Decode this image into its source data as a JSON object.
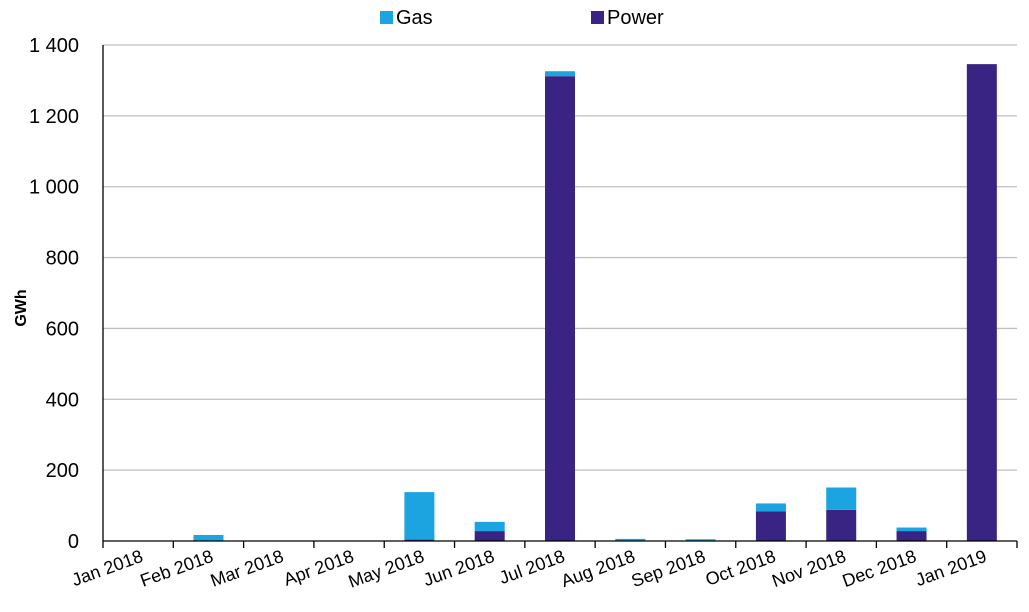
{
  "chart_data": {
    "type": "bar",
    "stacked": true,
    "categories": [
      "Jan 2018",
      "Feb 2018",
      "Mar 2018",
      "Apr 2018",
      "May 2018",
      "Jun 2018",
      "Jul 2018",
      "Aug 2018",
      "Sep 2018",
      "Oct 2018",
      "Nov 2018",
      "Dec 2018",
      "Jan 2019"
    ],
    "series": [
      {
        "name": "Power",
        "color": "#3a2483",
        "values": [
          0,
          0,
          0,
          0,
          4,
          28,
          1312,
          0,
          0,
          84,
          88,
          28,
          1346
        ]
      },
      {
        "name": "Gas",
        "color": "#1ba4e0",
        "values": [
          0,
          17,
          0,
          0,
          134,
          26,
          14,
          6,
          5,
          22,
          63,
          10,
          0
        ]
      }
    ],
    "legend": [
      "Gas",
      "Power"
    ],
    "legend_position": "top",
    "ylabel": "GWh",
    "xlabel": "",
    "ylim": [
      0,
      1400
    ],
    "yticks": [
      0,
      200,
      400,
      600,
      800,
      1000,
      1200,
      1400
    ],
    "ytick_labels": [
      "0",
      "200",
      "400",
      "600",
      "800",
      "1 000",
      "1 200",
      "1 400"
    ],
    "grid": true
  }
}
